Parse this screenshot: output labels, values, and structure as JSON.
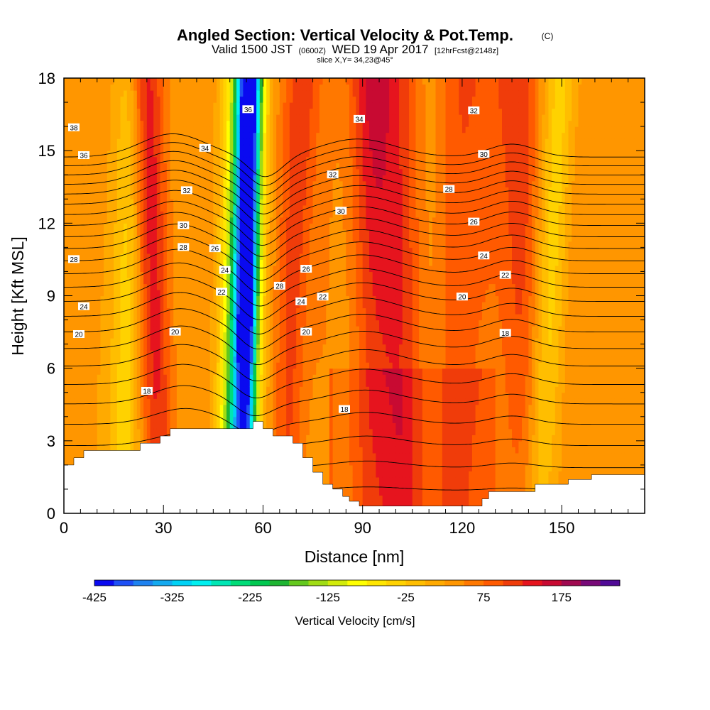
{
  "title": {
    "main": "Angled Section: Vertical Velocity & Pot.Temp.",
    "unit_tag": "(C)",
    "valid_prefix": "Valid 1500 JST",
    "valid_z": "(0600Z)",
    "valid_date": "WED 19 Apr 2017",
    "forecast_tag": "[12hrFcst@2148z]",
    "slice": "slice X,Y= 34,23@45°"
  },
  "chart_data": {
    "type": "heatmap",
    "xlabel": "Distance [nm]",
    "ylabel": "Height [Kft MSL]",
    "xlim": [
      0,
      175
    ],
    "ylim": [
      0,
      18
    ],
    "x_ticks": [
      "0",
      "30",
      "60",
      "90",
      "120",
      "150"
    ],
    "x_tick_values": [
      0,
      30,
      60,
      90,
      120,
      150
    ],
    "y_ticks": [
      "0",
      "3",
      "6",
      "9",
      "12",
      "15",
      "18"
    ],
    "y_tick_values": [
      0,
      3,
      6,
      9,
      12,
      15,
      18
    ],
    "colorbar": {
      "title": "Vertical Velocity [cm/s]",
      "labels": [
        "-425",
        "-325",
        "-225",
        "-125",
        "-25",
        "75",
        "175"
      ],
      "label_values": [
        -425,
        -325,
        -225,
        -125,
        -25,
        75,
        175
      ],
      "min": -425,
      "step": 25,
      "colors": [
        "#0a0af0",
        "#1e50f5",
        "#1e82f0",
        "#14aaf0",
        "#00d2f5",
        "#00f0f0",
        "#00e6b4",
        "#00dc78",
        "#00c850",
        "#1eb432",
        "#64c81e",
        "#a0dc14",
        "#d2eb0a",
        "#ffff00",
        "#ffe600",
        "#ffd200",
        "#ffbe00",
        "#ffaa00",
        "#ff9600",
        "#ff7800",
        "#ff5a00",
        "#f03c0a",
        "#e6141e",
        "#c80a32",
        "#a00a50",
        "#780a78",
        "#500a96"
      ]
    },
    "terrain_profile": {
      "distance": [
        0,
        3,
        3,
        6,
        6,
        9,
        9,
        23,
        23,
        29,
        29,
        32,
        32,
        35,
        35,
        57,
        57,
        60,
        60,
        63,
        63,
        65,
        65,
        69,
        69,
        72,
        72,
        75,
        75,
        78,
        78,
        81,
        81,
        84,
        84,
        86,
        86,
        89,
        89,
        105,
        105,
        113,
        113,
        126,
        126,
        128,
        128,
        142,
        142,
        152,
        152,
        159,
        159,
        175
      ],
      "height": [
        2.0,
        2.0,
        2.3,
        2.3,
        2.6,
        2.6,
        2.6,
        2.6,
        2.9,
        2.9,
        3.2,
        3.2,
        3.5,
        3.5,
        3.5,
        3.5,
        3.8,
        3.8,
        3.5,
        3.5,
        3.2,
        3.2,
        3.2,
        3.2,
        2.9,
        2.9,
        2.3,
        2.3,
        1.7,
        1.7,
        1.2,
        1.2,
        1.0,
        1.0,
        0.7,
        0.7,
        0.5,
        0.5,
        0.3,
        0.3,
        0.3,
        0.3,
        0.3,
        0.3,
        0.6,
        0.6,
        0.9,
        0.9,
        1.2,
        1.2,
        1.4,
        1.4,
        1.6,
        1.6
      ]
    },
    "velocity_features": [
      {
        "x0": 29,
        "x1": 24,
        "width": 5,
        "amp": 120
      },
      {
        "x0": 52,
        "x1": 55,
        "width": 5,
        "amp": -320
      },
      {
        "x0": 55,
        "x1": 56,
        "width": 3,
        "amp": -120
      },
      {
        "x0": 67,
        "x1": 72,
        "width": 5,
        "amp": 90
      },
      {
        "x0": 100,
        "x1": 95,
        "width": 9,
        "amp": 130
      },
      {
        "x0": 120,
        "x1": 122,
        "width": 7,
        "amp": 70
      },
      {
        "x0": 138,
        "x1": 136,
        "width": 6,
        "amp": 90
      },
      {
        "x0": 142,
        "x1": 150,
        "width": 5,
        "amp": -70
      },
      {
        "x0": 17,
        "x1": 20,
        "width": 5,
        "amp": -80
      }
    ],
    "contour_labels": [
      {
        "text": "38",
        "x": 3,
        "y": 15.95
      },
      {
        "text": "36",
        "x": 6,
        "y": 14.8
      },
      {
        "text": "28",
        "x": 3,
        "y": 10.5
      },
      {
        "text": "24",
        "x": 6,
        "y": 8.55
      },
      {
        "text": "20",
        "x": 4.5,
        "y": 7.4
      },
      {
        "text": "18",
        "x": 25,
        "y": 5.05
      },
      {
        "text": "20",
        "x": 33.5,
        "y": 7.5
      },
      {
        "text": "28",
        "x": 36,
        "y": 11.0
      },
      {
        "text": "30",
        "x": 36,
        "y": 11.9
      },
      {
        "text": "32",
        "x": 37,
        "y": 13.35
      },
      {
        "text": "34",
        "x": 42.5,
        "y": 15.1
      },
      {
        "text": "26",
        "x": 45.5,
        "y": 10.95
      },
      {
        "text": "24",
        "x": 48.5,
        "y": 10.05
      },
      {
        "text": "22",
        "x": 47.5,
        "y": 9.15
      },
      {
        "text": "36",
        "x": 55.5,
        "y": 16.7
      },
      {
        "text": "28",
        "x": 65,
        "y": 9.4
      },
      {
        "text": "26",
        "x": 73,
        "y": 10.1
      },
      {
        "text": "24",
        "x": 71.5,
        "y": 8.75
      },
      {
        "text": "22",
        "x": 78,
        "y": 8.95
      },
      {
        "text": "20",
        "x": 73,
        "y": 7.5
      },
      {
        "text": "18",
        "x": 84.5,
        "y": 4.3
      },
      {
        "text": "32",
        "x": 81,
        "y": 14.0
      },
      {
        "text": "30",
        "x": 83.5,
        "y": 12.5
      },
      {
        "text": "34",
        "x": 89,
        "y": 16.3
      },
      {
        "text": "32",
        "x": 123.5,
        "y": 16.65
      },
      {
        "text": "30",
        "x": 126.5,
        "y": 14.85
      },
      {
        "text": "28",
        "x": 116,
        "y": 13.4
      },
      {
        "text": "26",
        "x": 123.5,
        "y": 12.05
      },
      {
        "text": "24",
        "x": 126.5,
        "y": 10.65
      },
      {
        "text": "22",
        "x": 133,
        "y": 9.85
      },
      {
        "text": "20",
        "x": 120,
        "y": 8.95
      },
      {
        "text": "18",
        "x": 133,
        "y": 7.45
      }
    ]
  }
}
